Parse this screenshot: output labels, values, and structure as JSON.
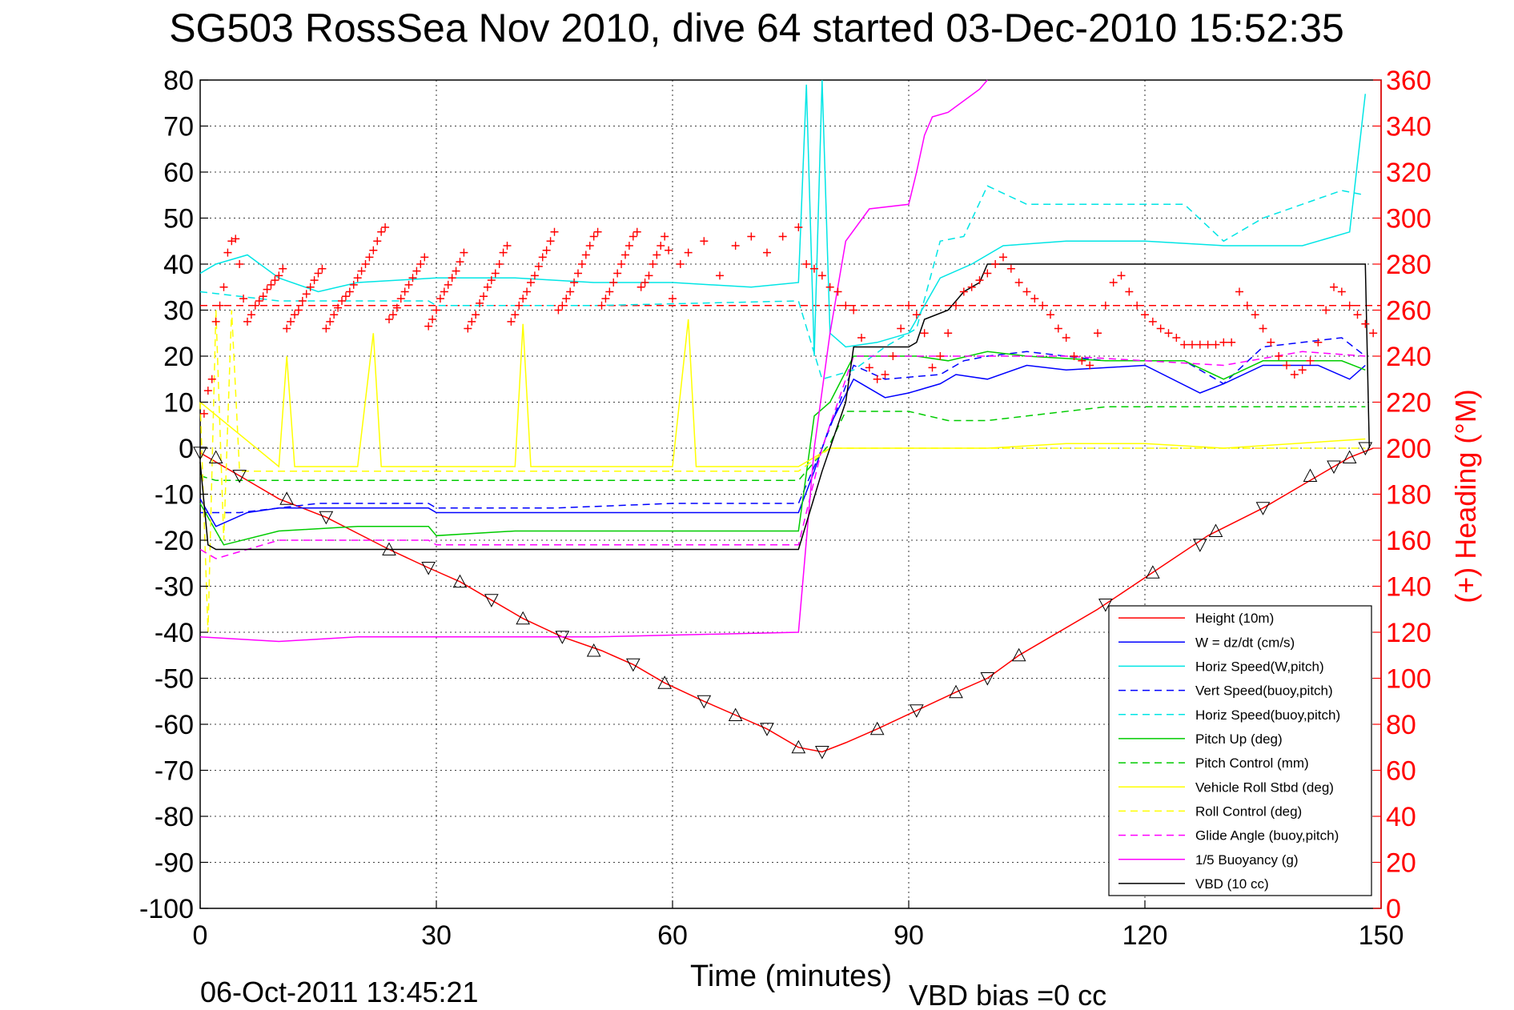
{
  "title": "SG503 RossSea Nov 2010, dive 64 started 03-Dec-2010 15:52:35",
  "xlabel": "Time (minutes)",
  "y2label": "(+) Heading (°M)",
  "footer_date": "06-Oct-2011 13:45:21",
  "footer_vbd": "VBD bias =0 cc",
  "chart_data": {
    "type": "line",
    "title": "SG503 RossSea Nov 2010, dive 64 started 03-Dec-2010 15:52:35",
    "xlabel": "Time (minutes)",
    "ylabel": "",
    "y2label": "(+) Heading (°M)",
    "xlim": [
      0,
      150
    ],
    "ylim": [
      -100,
      80
    ],
    "y2lim": [
      0,
      360
    ],
    "xticks": [
      0,
      30,
      60,
      90,
      120,
      150
    ],
    "yticks": [
      80,
      70,
      60,
      50,
      40,
      30,
      20,
      10,
      0,
      -10,
      -20,
      -30,
      -40,
      -50,
      -60,
      -70,
      -80,
      -90,
      -100
    ],
    "y2ticks": [
      360,
      340,
      320,
      300,
      280,
      260,
      240,
      220,
      200,
      180,
      160,
      140,
      120,
      100,
      80,
      60,
      40,
      20,
      0
    ],
    "grid": true,
    "legend_position": "bottom-right",
    "series": [
      {
        "name": "Height (10m)",
        "color": "#ff0000",
        "style": "solid",
        "x": [
          0,
          5,
          10,
          16,
          24,
          29,
          33,
          37,
          41,
          46,
          51,
          55,
          59,
          64,
          68,
          72,
          76,
          79,
          82,
          86,
          91,
          96,
          100,
          104,
          114,
          121,
          128,
          135,
          142,
          146,
          149
        ],
        "y": [
          -1,
          -6,
          -11,
          -15,
          -22,
          -26,
          -29,
          -33,
          -37,
          -41,
          -44,
          -47,
          -51,
          -55,
          -58,
          -61,
          -65,
          -66,
          -64,
          -61,
          -57,
          -53,
          -50,
          -45,
          -35,
          -27,
          -19,
          -13,
          -6,
          -2,
          0
        ]
      },
      {
        "name": "W = dz/dt (cm/s)",
        "color": "#0000ff",
        "style": "solid",
        "x": [
          0,
          2,
          6,
          10,
          15,
          20,
          25,
          29,
          30,
          40,
          50,
          60,
          70,
          76,
          78,
          80,
          83,
          87,
          90,
          94,
          96,
          100,
          105,
          110,
          120,
          127,
          130,
          135,
          142,
          146,
          148
        ],
        "y": [
          -11,
          -17,
          -14,
          -13,
          -13,
          -13,
          -13,
          -13,
          -14,
          -14,
          -14,
          -14,
          -14,
          -14,
          -5,
          5,
          15,
          11,
          12,
          14,
          16,
          15,
          18,
          17,
          18,
          12,
          14,
          18,
          18,
          15,
          18
        ]
      },
      {
        "name": "Horiz Speed(W,pitch)",
        "color": "#00e5e5",
        "style": "solid",
        "x": [
          0,
          2,
          6,
          10,
          15,
          20,
          30,
          40,
          50,
          60,
          70,
          76,
          77,
          78,
          79,
          80,
          82,
          86,
          90,
          94,
          98,
          102,
          110,
          120,
          130,
          140,
          146,
          148
        ],
        "y": [
          38,
          40,
          42,
          37,
          34,
          36,
          37,
          37,
          36,
          36,
          35,
          36,
          79,
          20,
          80,
          25,
          22,
          23,
          25,
          37,
          40,
          44,
          45,
          45,
          44,
          44,
          47,
          77
        ]
      },
      {
        "name": "Vert Speed(buoy,pitch)",
        "color": "#0000ff",
        "style": "dashed",
        "x": [
          0,
          5,
          15,
          29,
          30,
          45,
          60,
          76,
          79,
          83,
          87,
          94,
          97,
          100,
          105,
          115,
          125,
          130,
          135,
          145,
          148
        ],
        "y": [
          -14,
          -14,
          -12,
          -12,
          -13,
          -13,
          -12,
          -12,
          0,
          18,
          15,
          16,
          19,
          20,
          21,
          19,
          19,
          14,
          22,
          24,
          20
        ]
      },
      {
        "name": "Horiz Speed(buoy,pitch)",
        "color": "#00e5e5",
        "style": "dashed",
        "x": [
          0,
          10,
          29,
          30,
          50,
          76,
          79,
          83,
          87,
          91,
          94,
          97,
          100,
          105,
          115,
          125,
          130,
          135,
          145,
          148
        ],
        "y": [
          34,
          32,
          32,
          31,
          31,
          32,
          15,
          17,
          22,
          26,
          45,
          46,
          57,
          53,
          53,
          53,
          45,
          50,
          56,
          55
        ]
      },
      {
        "name": "Pitch Up (deg)",
        "color": "#00cc00",
        "style": "solid",
        "x": [
          0,
          3,
          10,
          20,
          29,
          30,
          40,
          50,
          60,
          70,
          76,
          78,
          80,
          83,
          87,
          91,
          95,
          100,
          105,
          115,
          125,
          130,
          135,
          145,
          148
        ],
        "y": [
          -12,
          -21,
          -18,
          -17,
          -17,
          -19,
          -18,
          -18,
          -18,
          -18,
          -18,
          7,
          10,
          20,
          20,
          20,
          19,
          21,
          20,
          19,
          19,
          15,
          19,
          19,
          17
        ]
      },
      {
        "name": "Pitch Control (mm)",
        "color": "#00cc00",
        "style": "dashed",
        "x": [
          0,
          2,
          30,
          60,
          76,
          80,
          82,
          90,
          95,
          100,
          105,
          115,
          125,
          130,
          148
        ],
        "y": [
          -6,
          -7,
          -7,
          -7,
          -7,
          1,
          8,
          8,
          6,
          6,
          7,
          9,
          9,
          9,
          9
        ]
      },
      {
        "name": "Vehicle Roll Stbd (deg)",
        "color": "#ffff00",
        "style": "solid",
        "x": [
          0,
          10,
          11,
          12,
          20,
          22,
          23,
          40,
          41,
          42,
          60,
          62,
          63,
          76,
          80,
          90,
          100,
          110,
          120,
          130,
          148
        ],
        "y": [
          10,
          -4,
          20,
          -4,
          -4,
          25,
          -4,
          -4,
          27,
          -4,
          -4,
          28,
          -4,
          -4,
          0,
          0,
          0,
          1,
          1,
          0,
          2
        ]
      },
      {
        "name": "Roll Control (deg)",
        "color": "#ffff00",
        "style": "dashed",
        "x": [
          0,
          1,
          2,
          3,
          4,
          5,
          6,
          20,
          29,
          30,
          50,
          76,
          80,
          90,
          110,
          130,
          148
        ],
        "y": [
          10,
          -40,
          30,
          -20,
          30,
          -5,
          -5,
          -5,
          -5,
          -5,
          -5,
          -5,
          0,
          0,
          0,
          0,
          0
        ]
      },
      {
        "name": "Glide Angle (buoy,pitch)",
        "color": "#ff00ff",
        "style": "dashed",
        "x": [
          0,
          2,
          10,
          20,
          29,
          30,
          50,
          76,
          79,
          83,
          87,
          90,
          95,
          100,
          110,
          120,
          130,
          140,
          148
        ],
        "y": [
          -22,
          -24,
          -20,
          -20,
          -20,
          -21,
          -21,
          -21,
          0,
          20,
          20,
          20,
          20,
          20,
          20,
          19,
          18,
          21,
          20
        ]
      },
      {
        "name": "1/5 Buoyancy (g)",
        "color": "#ff00ff",
        "style": "solid",
        "x": [
          0,
          10,
          20,
          30,
          50,
          76,
          77,
          78,
          80,
          82,
          85,
          90,
          91,
          92,
          93,
          95,
          99,
          100
        ],
        "y": [
          -41,
          -42,
          -41,
          -41,
          -41,
          -40,
          -20,
          0,
          25,
          45,
          52,
          53,
          60,
          68,
          72,
          73,
          78,
          80
        ]
      },
      {
        "name": "VBD (10 cc)",
        "color": "#000000",
        "style": "solid",
        "x": [
          0,
          1,
          2,
          29,
          50,
          76,
          79,
          82,
          83,
          90,
          91,
          92,
          95,
          97,
          99,
          100,
          110,
          130,
          148,
          148.5
        ],
        "y": [
          -3,
          -21,
          -22,
          -22,
          -22,
          -22,
          -5,
          10,
          22,
          22,
          23,
          28,
          30,
          34,
          36,
          40,
          40,
          40,
          40,
          0
        ]
      }
    ],
    "heading_reference": {
      "name": "heading-reference",
      "color": "#ff0000",
      "style": "dashed",
      "y2": 262
    },
    "heading_points": {
      "name": "heading",
      "color": "#ff0000",
      "marker": "+",
      "axis": "y2",
      "x": [
        0.5,
        1,
        1.5,
        2,
        2.5,
        3,
        3.5,
        4,
        4.5,
        5,
        5.5,
        6,
        6.5,
        7,
        7.5,
        8,
        8.5,
        9,
        9.5,
        10,
        10.5,
        11,
        11.5,
        12,
        12.5,
        13,
        13.5,
        14,
        14.5,
        15,
        15.5,
        16,
        16.5,
        17,
        17.5,
        18,
        18.5,
        19,
        19.5,
        20,
        20.5,
        21,
        21.5,
        22,
        22.5,
        23,
        23.5,
        24,
        24.5,
        25,
        25.5,
        26,
        26.5,
        27,
        27.5,
        28,
        28.5,
        29,
        29.5,
        30,
        30.5,
        31,
        31.5,
        32,
        32.5,
        33,
        33.5,
        34,
        34.5,
        35,
        35.5,
        36,
        36.5,
        37,
        37.5,
        38,
        38.5,
        39,
        39.5,
        40,
        40.5,
        41,
        41.5,
        42,
        42.5,
        43,
        43.5,
        44,
        44.5,
        45,
        45.5,
        46,
        46.5,
        47,
        47.5,
        48,
        48.5,
        49,
        49.5,
        50,
        50.5,
        51,
        51.5,
        52,
        52.5,
        53,
        53.5,
        54,
        54.5,
        55,
        55.5,
        56,
        56.5,
        57,
        57.5,
        58,
        58.5,
        59,
        59.5,
        60,
        61,
        62,
        64,
        66,
        68,
        70,
        72,
        74,
        76,
        77,
        78,
        79,
        80,
        81,
        82,
        83,
        84,
        85,
        86,
        87,
        88,
        89,
        90,
        91,
        92,
        93,
        94,
        95,
        96,
        97,
        98,
        99,
        100,
        101,
        102,
        103,
        104,
        105,
        106,
        107,
        108,
        109,
        110,
        111,
        112,
        113,
        114,
        115,
        116,
        117,
        118,
        119,
        120,
        121,
        122,
        123,
        124,
        125,
        126,
        127,
        128,
        129,
        130,
        131,
        132,
        133,
        134,
        135,
        136,
        137,
        138,
        139,
        140,
        141,
        142,
        143,
        144,
        145,
        146,
        147,
        148,
        149
      ],
      "y2": [
        215,
        225,
        230,
        255,
        262,
        270,
        285,
        290,
        291,
        280,
        265,
        255,
        258,
        262,
        264,
        266,
        269,
        271,
        273,
        275,
        278,
        252,
        255,
        258,
        260,
        264,
        267,
        270,
        273,
        276,
        278,
        252,
        255,
        258,
        261,
        264,
        266,
        268,
        271,
        274,
        277,
        280,
        283,
        286,
        290,
        294,
        296,
        256,
        258,
        261,
        265,
        268,
        271,
        274,
        277,
        280,
        283,
        253,
        256,
        260,
        265,
        268,
        271,
        274,
        277,
        281,
        285,
        252,
        255,
        258,
        263,
        266,
        270,
        273,
        276,
        280,
        285,
        288,
        255,
        258,
        262,
        265,
        268,
        272,
        275,
        279,
        283,
        286,
        290,
        294,
        260,
        262,
        265,
        268,
        272,
        276,
        280,
        284,
        288,
        292,
        294,
        262,
        265,
        268,
        272,
        276,
        280,
        284,
        288,
        292,
        294,
        270,
        272,
        275,
        280,
        284,
        288,
        292,
        286,
        265,
        280,
        285,
        290,
        275,
        288,
        292,
        285,
        292,
        296,
        280,
        278,
        275,
        270,
        268,
        262,
        260,
        248,
        235,
        230,
        232,
        240,
        252,
        262,
        258,
        250,
        235,
        240,
        250,
        262,
        268,
        270,
        273,
        276,
        280,
        283,
        278,
        272,
        268,
        265,
        262,
        258,
        252,
        248,
        240,
        238,
        236,
        250,
        262,
        272,
        275,
        268,
        262,
        258,
        255,
        252,
        250,
        248,
        245,
        245,
        245,
        245,
        245,
        246,
        246,
        268,
        262,
        258,
        252,
        246,
        240,
        236,
        232,
        234,
        238,
        246,
        260,
        270,
        268,
        262,
        258,
        254,
        250,
        252,
        252,
        250,
        248,
        240,
        236,
        230,
        226,
        235,
        245,
        268,
        265,
        235
      ]
    },
    "depth_markers": {
      "name": "depth-markers",
      "color": "#000000",
      "marker": "triangle",
      "x": [
        0,
        2,
        5,
        11,
        16,
        24,
        29,
        33,
        37,
        41,
        46,
        50,
        55,
        59,
        64,
        68,
        72,
        76,
        79,
        86,
        91,
        96,
        100,
        104,
        115,
        121,
        127,
        129,
        135,
        141,
        144,
        146,
        148
      ],
      "y": [
        -1,
        -2,
        -6,
        -11,
        -15,
        -22,
        -26,
        -29,
        -33,
        -37,
        -41,
        -44,
        -47,
        -51,
        -55,
        -58,
        -61,
        -65,
        -66,
        -61,
        -57,
        -53,
        -50,
        -45,
        -34,
        -27,
        -21,
        -18,
        -13,
        -6,
        -4,
        -2,
        0
      ]
    }
  }
}
